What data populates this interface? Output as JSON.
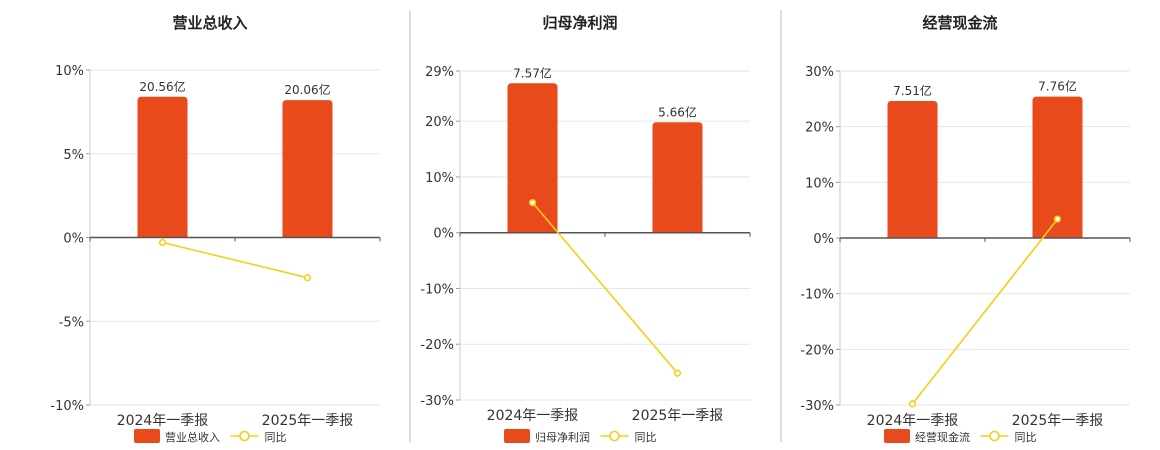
{
  "colors": {
    "bar": "#e84a1c",
    "line": "#f5cf14",
    "zero_axis": "#555555",
    "grid": "#e6e6e6",
    "divider": "#bbbbbb",
    "title": "#222222",
    "tick": "#333333"
  },
  "legend": {
    "line_label": "同比"
  },
  "chart_data": [
    {
      "type": "bar",
      "title": "营业总收入",
      "categories": [
        "2024年一季报",
        "2025年一季报"
      ],
      "bar_labels": [
        "20.56亿",
        "20.06亿"
      ],
      "series": [
        {
          "name": "营业总收入",
          "type": "bar",
          "values": [
            8.4,
            8.2
          ]
        },
        {
          "name": "同比",
          "type": "line",
          "values": [
            -0.3,
            -2.4
          ]
        }
      ],
      "yticks": [
        "10%",
        "5%",
        "0%",
        "-5%",
        "-10%"
      ],
      "ylim": [
        -10,
        10
      ],
      "grid": true,
      "legend_position": "bottom"
    },
    {
      "type": "bar",
      "title": "归母净利润",
      "categories": [
        "2024年一季报",
        "2025年一季报"
      ],
      "bar_labels": [
        "7.57亿",
        "5.66亿"
      ],
      "series": [
        {
          "name": "归母净利润",
          "type": "bar",
          "values": [
            26.8,
            19.8
          ]
        },
        {
          "name": "同比",
          "type": "line",
          "values": [
            5.4,
            -25.2
          ]
        }
      ],
      "yticks": [
        "29%",
        "20%",
        "10%",
        "0%",
        "-10%",
        "-20%",
        "-30%"
      ],
      "ytick_values": [
        29,
        20,
        10,
        0,
        -10,
        -20,
        -30
      ],
      "ylim": [
        -30,
        29
      ],
      "grid": true,
      "legend_position": "bottom"
    },
    {
      "type": "bar",
      "title": "经营现金流",
      "categories": [
        "2024年一季报",
        "2025年一季报"
      ],
      "bar_labels": [
        "7.51亿",
        "7.76亿"
      ],
      "series": [
        {
          "name": "经营现金流",
          "type": "bar",
          "values": [
            24.6,
            25.4
          ]
        },
        {
          "name": "同比",
          "type": "line",
          "values": [
            -29.8,
            3.4
          ]
        }
      ],
      "yticks": [
        "30%",
        "20%",
        "10%",
        "0%",
        "-10%",
        "-20%",
        "-30%"
      ],
      "ytick_values": [
        30,
        20,
        10,
        0,
        -10,
        -20,
        -30
      ],
      "ylim": [
        -30,
        30
      ],
      "grid": true,
      "legend_position": "bottom"
    }
  ]
}
